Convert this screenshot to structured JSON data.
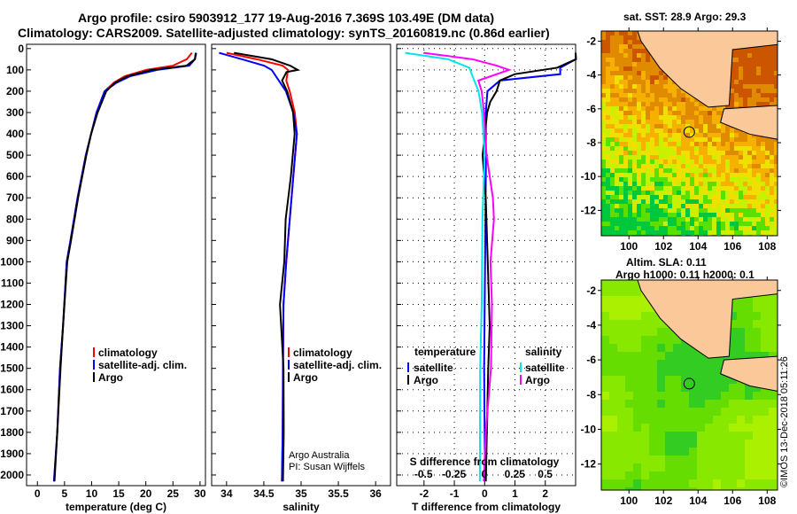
{
  "title_line1": "Argo profile: csiro 5903912_177 19-Aug-2016 7.369S 103.49E (DM data)",
  "title_line2": "Climatology: CARS2009. Satellite-adjusted climatology: synTS_20160819.nc (0.86d earlier)",
  "colors": {
    "climatology": "#ff0000",
    "satellite": "#0000ff",
    "argo": "#000000",
    "salinity_satellite": "#00e5ee",
    "salinity_argo": "#ff00ff"
  },
  "chart_data": [
    {
      "type": "line",
      "name": "temperature-profile",
      "xlabel": "temperature (deg C)",
      "ylabel": "depth",
      "xlim": [
        -2,
        31
      ],
      "ylim": [
        2050,
        -20
      ],
      "xticks": [
        0,
        5,
        10,
        15,
        20,
        25,
        30
      ],
      "yticks": [
        0,
        100,
        200,
        300,
        400,
        500,
        600,
        700,
        800,
        900,
        1000,
        1100,
        1200,
        1300,
        1400,
        1500,
        1600,
        1700,
        1800,
        1900,
        2000
      ],
      "grid": false,
      "legend": "bottom-right",
      "series": [
        {
          "name": "climatology",
          "color": "#ff0000",
          "depth": [
            20,
            50,
            80,
            100,
            130,
            160,
            200,
            300,
            400,
            500,
            700,
            900,
            1000,
            1300,
            1500,
            1800,
            2030
          ],
          "values": [
            28.5,
            27.5,
            25,
            20,
            16,
            14,
            12.5,
            11,
            10,
            9,
            7.5,
            6.2,
            5.5,
            4.8,
            4.2,
            3.6,
            3
          ]
        },
        {
          "name": "satellite-adj. clim.",
          "color": "#0000ff",
          "depth": [
            20,
            50,
            80,
            100,
            130,
            160,
            200,
            300,
            400,
            500,
            700,
            900,
            1000,
            1300,
            1500,
            1800,
            2030
          ],
          "values": [
            29.3,
            29,
            28,
            22,
            17,
            14.5,
            12.5,
            11,
            10,
            9,
            7.5,
            6.2,
            5.5,
            4.8,
            4.2,
            3.6,
            3
          ]
        },
        {
          "name": "Argo",
          "color": "#000000",
          "depth": [
            20,
            50,
            80,
            100,
            130,
            160,
            200,
            300,
            400,
            500,
            700,
            900,
            1000,
            1300,
            1500,
            1800,
            2030
          ],
          "values": [
            29.2,
            29,
            27.5,
            21,
            16.5,
            14.2,
            12.8,
            11.2,
            10,
            9.1,
            7.6,
            6.3,
            5.6,
            4.8,
            4.3,
            3.6,
            3.1
          ]
        }
      ]
    },
    {
      "type": "line",
      "name": "salinity-profile",
      "xlabel": "salinity",
      "xlim": [
        33.8,
        36.2
      ],
      "ylim": [
        2050,
        -20
      ],
      "xticks": [
        34,
        34.5,
        35,
        35.5,
        36
      ],
      "legend": "bottom-right",
      "annotation": [
        "Argo Australia",
        "PI: Susan Wijffels"
      ],
      "series": [
        {
          "name": "climatology",
          "color": "#ff0000",
          "depth": [
            20,
            50,
            80,
            100,
            150,
            200,
            300,
            400,
            600,
            800,
            1000,
            1200,
            1500,
            1800,
            2030
          ],
          "values": [
            34.0,
            34.4,
            34.75,
            34.82,
            34.8,
            34.85,
            34.92,
            34.95,
            34.9,
            34.85,
            34.8,
            34.76,
            34.75,
            34.75,
            34.75
          ]
        },
        {
          "name": "satellite-adj. clim.",
          "color": "#0000ff",
          "depth": [
            20,
            50,
            80,
            100,
            150,
            200,
            300,
            400,
            600,
            800,
            1000,
            1200,
            1500,
            1800,
            2030
          ],
          "values": [
            33.9,
            34.2,
            34.5,
            34.6,
            34.7,
            34.8,
            34.9,
            34.95,
            34.9,
            34.85,
            34.8,
            34.76,
            34.75,
            34.75,
            34.75
          ]
        },
        {
          "name": "Argo",
          "color": "#000000",
          "depth": [
            20,
            50,
            80,
            100,
            110,
            150,
            200,
            300,
            400,
            600,
            800,
            1000,
            1200,
            1500,
            1800,
            2030
          ],
          "values": [
            34.1,
            34.6,
            34.85,
            34.95,
            34.8,
            34.75,
            34.82,
            34.9,
            34.92,
            34.87,
            34.8,
            34.78,
            34.72,
            34.76,
            34.76,
            34.76
          ]
        }
      ]
    },
    {
      "type": "line",
      "name": "difference-profile",
      "xlabel": "T difference from climatology",
      "xlabel2": "S difference from climatology",
      "xlim": [
        -2.9,
        3
      ],
      "xticks": [
        -2,
        -1,
        0,
        1,
        2
      ],
      "xlim2": [
        -0.72,
        0.75
      ],
      "xticks2": [
        "-0.5",
        "-0.25",
        "0",
        "0.25",
        "0.5"
      ],
      "ylim": [
        2050,
        -20
      ],
      "legend_temperature": {
        "title": "temperature",
        "items": [
          "satellite",
          "Argo"
        ]
      },
      "legend_salinity": {
        "title": "salinity",
        "items": [
          "satellite",
          "Argo"
        ]
      },
      "series": [
        {
          "name": "temperature satellite",
          "color": "#0000ff",
          "depth": [
            20,
            50,
            90,
            120,
            150,
            200,
            300,
            500,
            1000,
            1500,
            2030
          ],
          "values": [
            3,
            3,
            2.5,
            2.5,
            0.5,
            0.1,
            0.05,
            0.05,
            0,
            0,
            0
          ]
        },
        {
          "name": "temperature Argo",
          "color": "#000000",
          "depth": [
            20,
            50,
            90,
            120,
            150,
            200,
            250,
            300,
            500,
            700,
            1000,
            1300,
            1500,
            2030
          ],
          "values": [
            3,
            3,
            2.4,
            1.0,
            0.5,
            0.4,
            0.2,
            0.1,
            -0.05,
            0.05,
            0.1,
            0.15,
            0.1,
            0.05
          ]
        },
        {
          "name": "salinity satellite",
          "color": "#00e5ee",
          "depth": [
            20,
            50,
            90,
            130,
            200,
            300,
            500,
            800,
            1200,
            1500,
            2030
          ],
          "values": [
            -0.65,
            -0.3,
            -0.12,
            -0.1,
            -0.05,
            -0.02,
            0,
            -0.02,
            -0.02,
            -0.03,
            -0.04
          ]
        },
        {
          "name": "salinity Argo",
          "color": "#ff00ff",
          "depth": [
            20,
            50,
            80,
            100,
            150,
            200,
            300,
            500,
            700,
            800,
            1000,
            1200,
            1500,
            1800,
            2030
          ],
          "values": [
            -0.5,
            -0.1,
            0.1,
            0.2,
            -0.05,
            -0.02,
            0,
            0.02,
            0.07,
            0.08,
            0.05,
            0.06,
            0.05,
            0.01,
            0
          ]
        }
      ]
    }
  ],
  "map_sst": {
    "title": "sat. SST: 28.9 Argo: 29.3",
    "lon_ticks": [
      "100",
      "102",
      "104",
      "106",
      "108"
    ],
    "lat_ticks": [
      "-2",
      "-4",
      "-6",
      "-8",
      "-10",
      "-12"
    ],
    "argo_position": {
      "lon": 103.49,
      "lat": -7.369
    }
  },
  "map_sla": {
    "title1": "Altim. SLA: 0.11",
    "title2": "Argo h1000: 0.11 h2000: 0.1",
    "lon_ticks": [
      "100",
      "102",
      "104",
      "106",
      "108"
    ],
    "lat_ticks": [
      "-2",
      "-4",
      "-6",
      "-8",
      "-10",
      "-12"
    ]
  },
  "credit": "©IMOS 13-Dec-2018 05:11:26"
}
